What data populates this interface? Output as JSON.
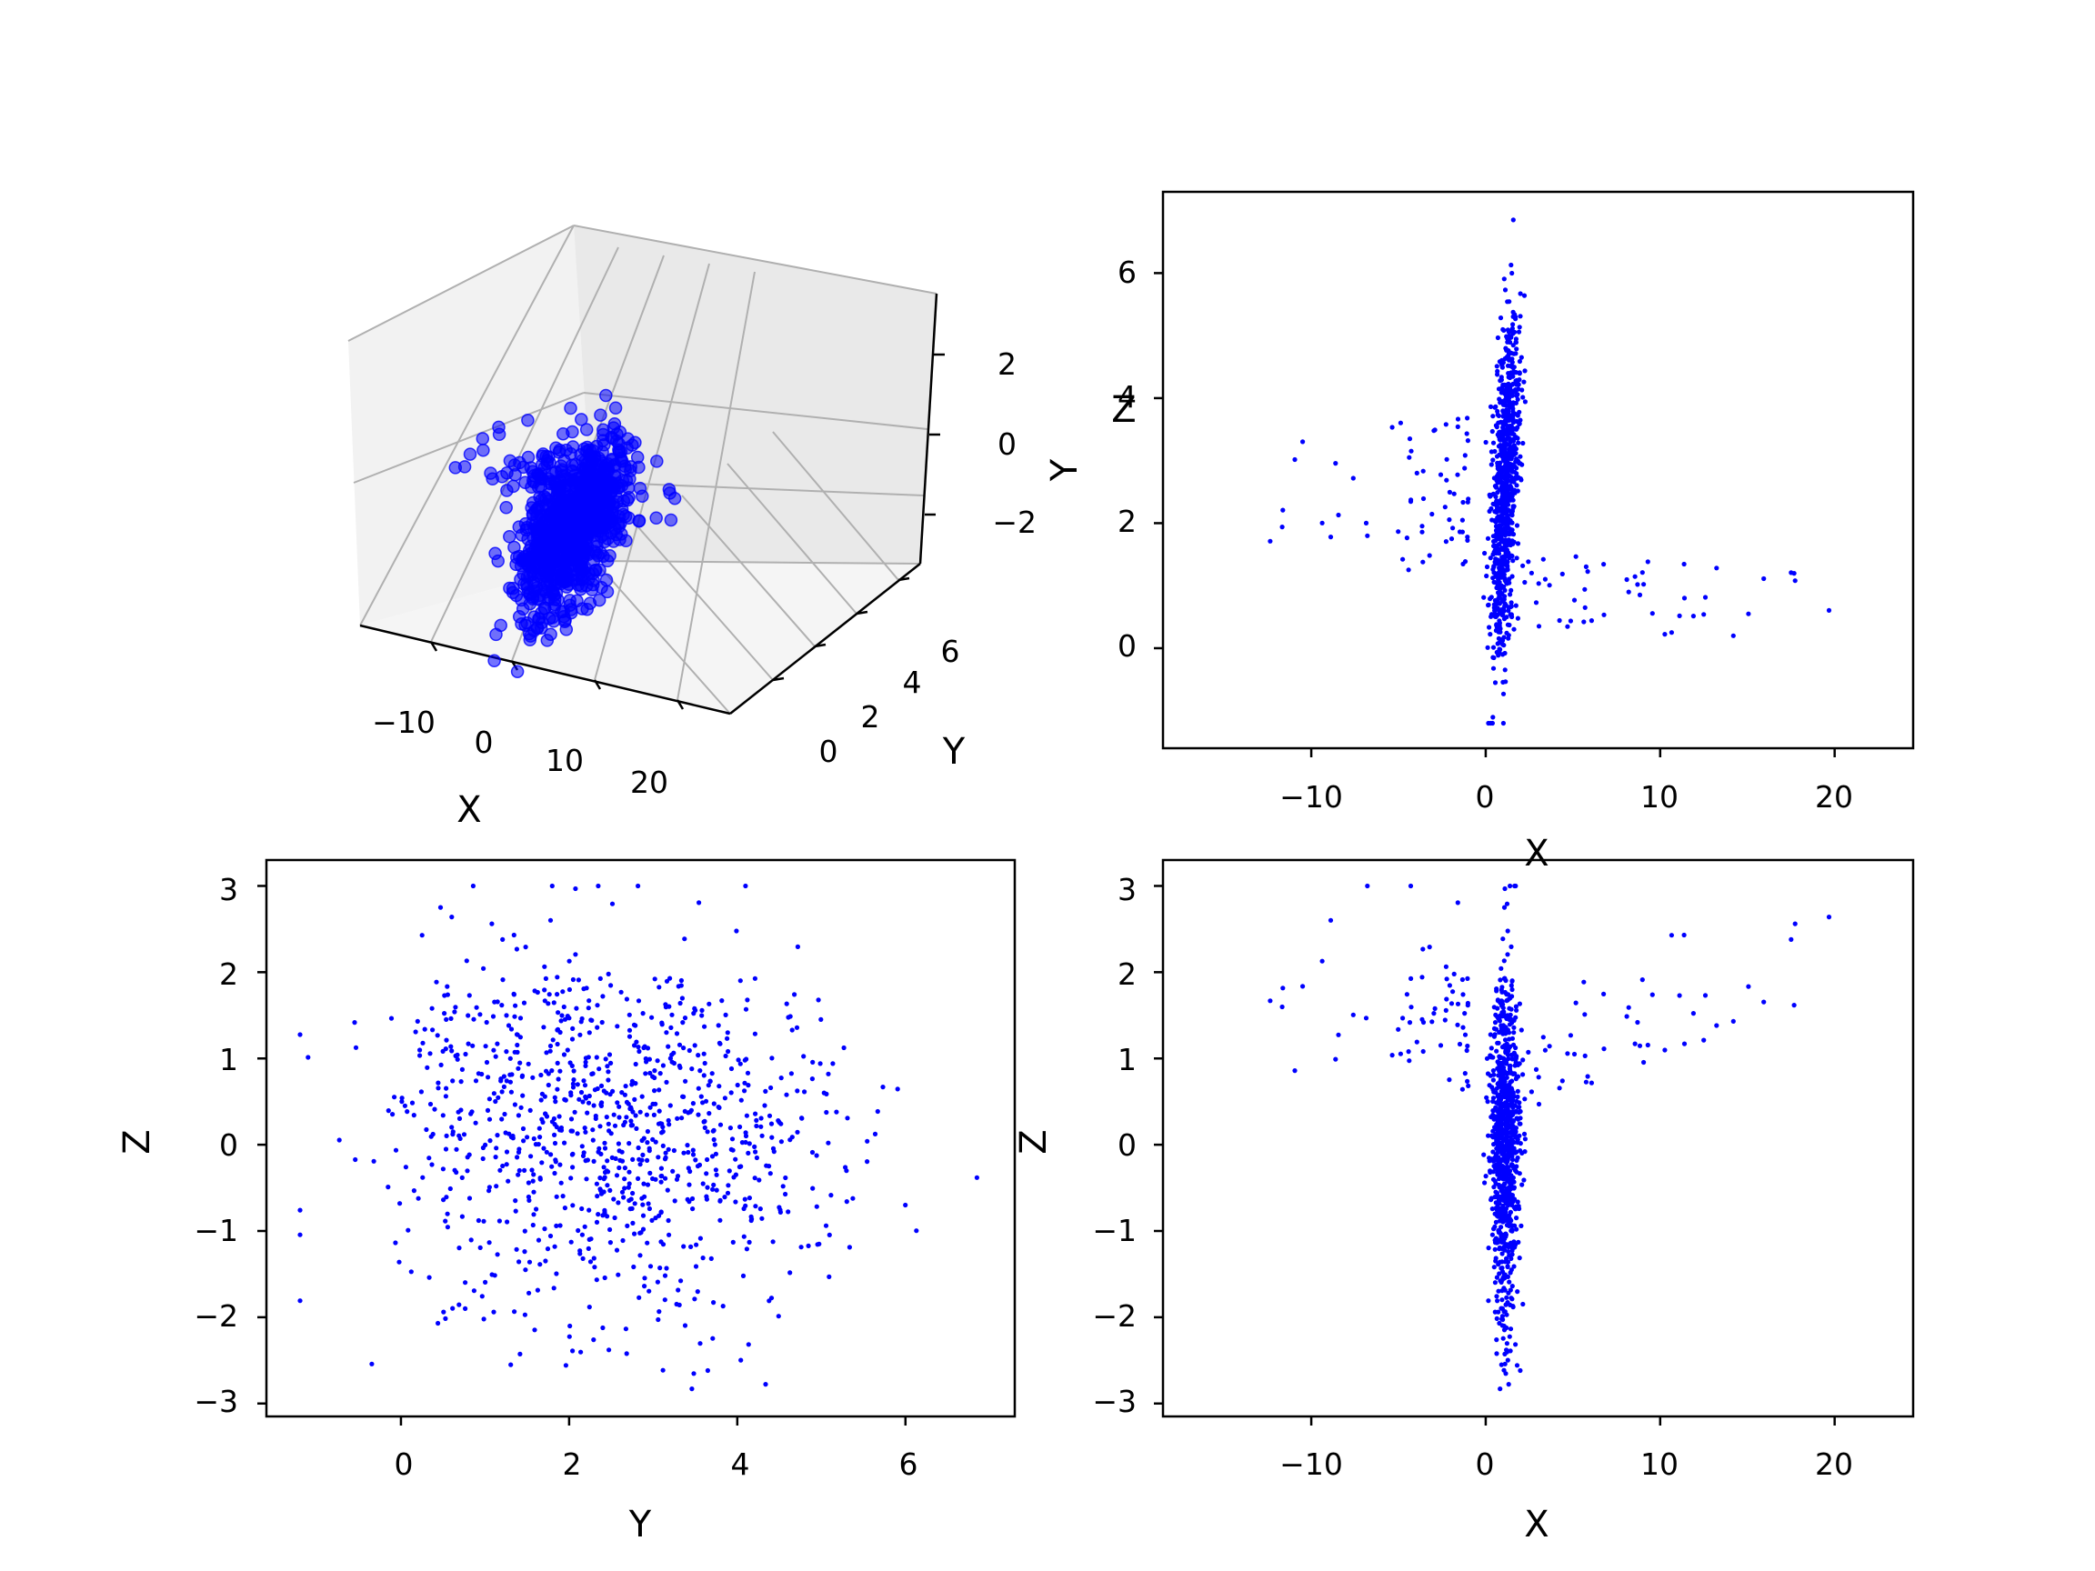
{
  "colors": {
    "points": "#0000ff",
    "axes": "#000000",
    "pane": "#f2f2f2",
    "grid": "#b0b0b0"
  },
  "chart_data": [
    {
      "id": "xyz3d",
      "type": "scatter",
      "projection": "3d",
      "xlabel": "X",
      "ylabel": "Y",
      "zlabel": "Z",
      "xticks": [
        "−10",
        "0",
        "10",
        "20"
      ],
      "yticks": [
        "0",
        "2",
        "4",
        "6"
      ],
      "zticks": [
        "2",
        "0",
        "−2"
      ],
      "xlim": [
        -17,
        23
      ],
      "ylim": [
        -1.3,
        6.9
      ],
      "zlim": [
        -2.9,
        3.1
      ],
      "marker": "circle-large-alpha",
      "n_points_approx": 1000
    },
    {
      "id": "xy",
      "type": "scatter",
      "xlabel": "X",
      "ylabel": "Y",
      "xticks": [
        "−10",
        "0",
        "10",
        "20"
      ],
      "yticks": [
        "0",
        "2",
        "4",
        "6"
      ],
      "xlim": [
        -18.5,
        24.5
      ],
      "ylim": [
        -1.6,
        7.3
      ],
      "n_points_approx": 1000
    },
    {
      "id": "yz",
      "type": "scatter",
      "xlabel": "Y",
      "ylabel": "Z",
      "xticks": [
        "0",
        "2",
        "4",
        "6"
      ],
      "yticks": [
        "3",
        "2",
        "1",
        "0",
        "−1",
        "−2",
        "−3"
      ],
      "xlim": [
        -1.6,
        7.3
      ],
      "ylim": [
        -3.15,
        3.3
      ],
      "n_points_approx": 1000
    },
    {
      "id": "xz",
      "type": "scatter",
      "xlabel": "X",
      "ylabel": "Z",
      "xticks": [
        "−10",
        "0",
        "10",
        "20"
      ],
      "yticks": [
        "3",
        "2",
        "1",
        "0",
        "−1",
        "−2",
        "−3"
      ],
      "xlim": [
        -18.5,
        24.5
      ],
      "ylim": [
        -3.15,
        3.3
      ],
      "n_points_approx": 1000
    }
  ]
}
